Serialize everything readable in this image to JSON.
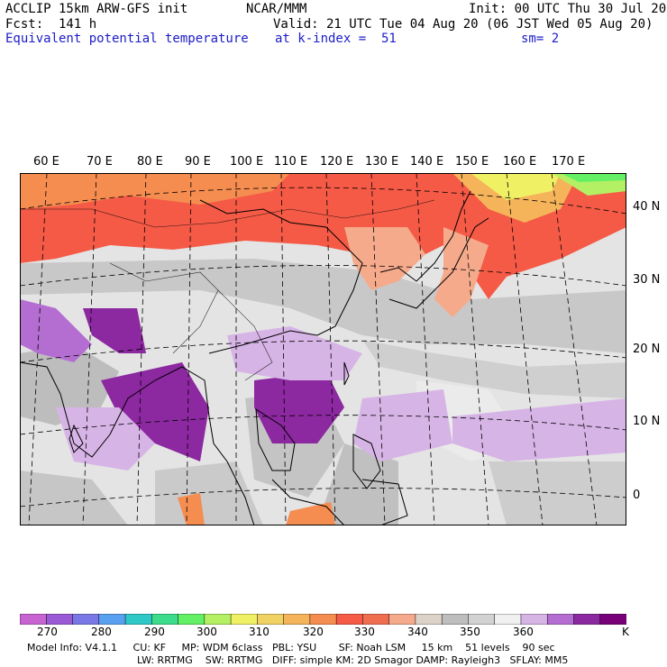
{
  "header": {
    "model": "ACCLIP 15km ARW-GFS init",
    "org": "NCAR/MMM",
    "init": "Init: 00 UTC Thu 30 Jul 20",
    "fcst": "Fcst:  141 h",
    "valid": "Valid: 21 UTC Tue 04 Aug 20 (06 JST Wed 05 Aug 20)",
    "field": "Equivalent potential temperature",
    "level": "at k-index =  51",
    "smooth": "sm= 2"
  },
  "map": {
    "lon_labels": [
      "60 E",
      "70 E",
      "80 E",
      "90 E",
      "100 E",
      "110 E",
      "120 E",
      "130 E",
      "140 E",
      "150 E",
      "160 E",
      "170 E"
    ],
    "lat_labels": [
      "40 N",
      "30 N",
      "20 N",
      "10 N",
      "0"
    ]
  },
  "colorbar": {
    "colors": [
      "#c864d2",
      "#9a5ad6",
      "#7a78e6",
      "#5aa0f0",
      "#2ec8c8",
      "#3cdc8c",
      "#64f064",
      "#b4f064",
      "#f0f064",
      "#f0d264",
      "#f5b45a",
      "#f58c50",
      "#f55a46",
      "#f06e50",
      "#f5aa8c",
      "#dcd2c8",
      "#bebebe",
      "#d2d2d2",
      "#f0f0f0",
      "#d7b4e6",
      "#b46ed2",
      "#8c28a0",
      "#780078"
    ],
    "labels": [
      "270",
      "280",
      "290",
      "300",
      "310",
      "320",
      "330",
      "340",
      "350",
      "360",
      "K"
    ]
  },
  "footer": {
    "line1": "Model Info: V4.1.1     CU: KF     MP: WDM 6class   PBL: YSU       SF: Noah LSM     15 km    51 levels    90 sec",
    "line2": "LW: RRTMG    SW: RRTMG   DIFF: simple KM: 2D Smagor DAMP: Rayleigh3   SFLAY: MM5"
  }
}
